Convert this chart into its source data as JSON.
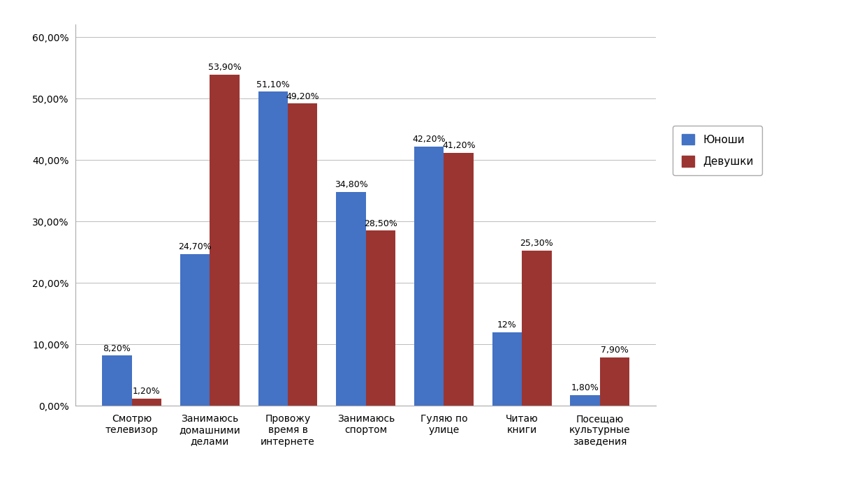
{
  "categories": [
    "Смотрю\nтелевизор",
    "Занимаюсь\nдомашними\nделами",
    "Провожу\nвремя в\nинтернете",
    "Занимаюсь\nспортом",
    "Гуляю по\nулице",
    "Читаю\nкниги",
    "Посещаю\nкультурные\nзаведения"
  ],
  "yunosti": [
    8.2,
    24.7,
    51.1,
    34.8,
    42.2,
    12.0,
    1.8
  ],
  "devushki": [
    1.2,
    53.9,
    49.2,
    28.5,
    41.2,
    25.3,
    7.9
  ],
  "yunosti_labels": [
    "8,20%",
    "24,70%",
    "51,10%",
    "34,80%",
    "42,20%",
    "12%",
    "1,80%"
  ],
  "devushki_labels": [
    "1,20%",
    "53,90%",
    "49,20%",
    "28,50%",
    "41,20%",
    "25,30%",
    "7,90%"
  ],
  "bar_color_yunosti": "#4472C4",
  "bar_color_devushki": "#9B3532",
  "legend_yunosti": "Юноши",
  "legend_devushki": "Девушки",
  "ylim": [
    0,
    62
  ],
  "yticks": [
    0,
    10,
    20,
    30,
    40,
    50,
    60
  ],
  "ytick_labels": [
    "0,00%",
    "10,00%",
    "20,00%",
    "30,00%",
    "40,00%",
    "50,00%",
    "60,00%"
  ],
  "background_color": "#ffffff",
  "grid_color": "#bbbbbb",
  "bar_width": 0.38,
  "label_fontsize": 9,
  "tick_fontsize": 10,
  "legend_fontsize": 11,
  "spine_color": "#aaaaaa"
}
